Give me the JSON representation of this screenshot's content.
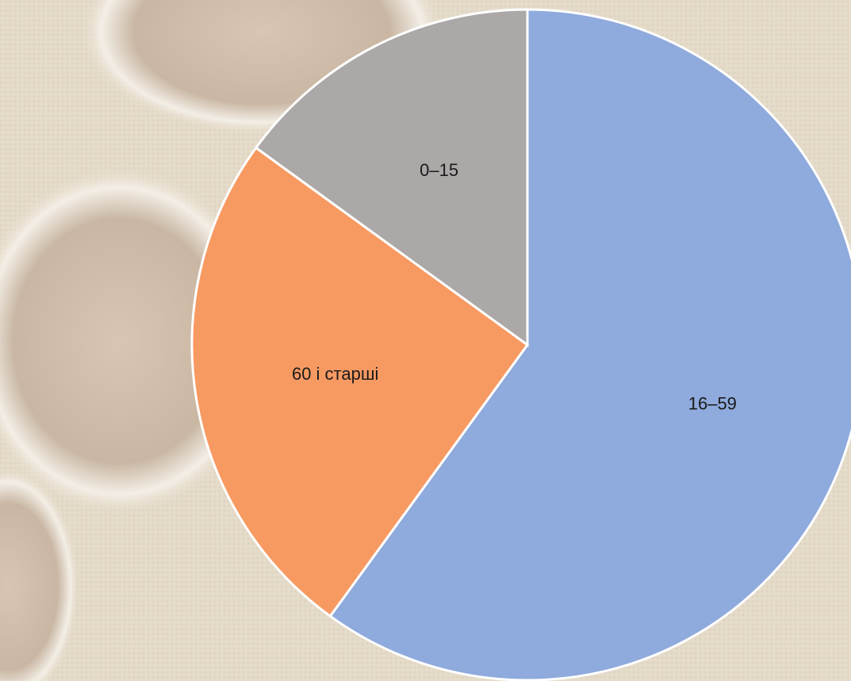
{
  "chart_data": {
    "type": "pie",
    "categories": [
      "16–59",
      "60 і старші",
      "0–15"
    ],
    "values": [
      60,
      25,
      15
    ],
    "colors": [
      "#8faadc",
      "#f79a62",
      "#aca8a8"
    ],
    "start_angle": 0,
    "direction": "clockwise"
  }
}
